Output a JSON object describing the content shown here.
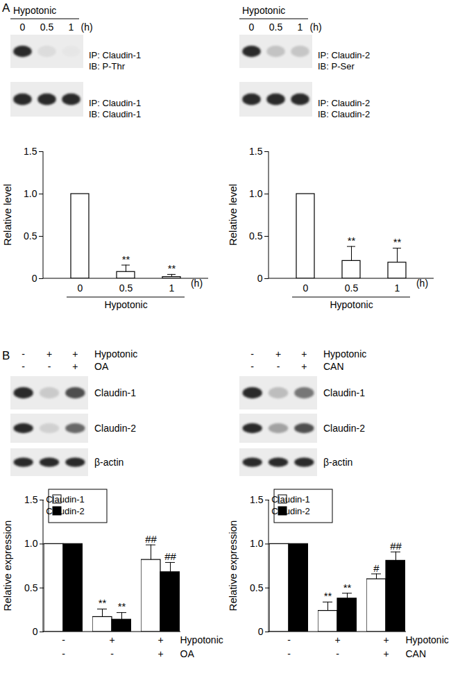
{
  "panel_labels": [
    "A",
    "B"
  ],
  "blots": [
    {
      "treatment": "Hypotonic",
      "lanes": [
        "0",
        "0.5",
        "1"
      ],
      "unit": "(h)",
      "rows": [
        [
          "IP: Claudin-1",
          "IB: P-Thr"
        ],
        [
          "IP: Claudin-1",
          "IB: Claudin-1"
        ]
      ]
    },
    {
      "treatment": "Hypotonic",
      "lanes": [
        "0",
        "0.5",
        "1"
      ],
      "unit": "(h)",
      "rows": [
        [
          "IP: Claudin-2",
          "IB: P-Ser"
        ],
        [
          "IP: Claudin-2",
          "IB: Claudin-2"
        ]
      ]
    },
    {
      "treatment_rows": [
        {
          "label": "Hypotonic",
          "values": [
            "-",
            "+",
            "+"
          ]
        },
        {
          "label": "OA",
          "values": [
            "-",
            "-",
            "+"
          ]
        }
      ],
      "rows": [
        [
          "Claudin-1"
        ],
        [
          "Claudin-2"
        ],
        [
          "β-actin"
        ]
      ]
    },
    {
      "treatment_rows": [
        {
          "label": "Hypotonic",
          "values": [
            "-",
            "+",
            "+"
          ]
        },
        {
          "label": "CAN",
          "values": [
            "-",
            "-",
            "+"
          ]
        }
      ],
      "rows": [
        [
          "Claudin-1"
        ],
        [
          "Claudin-2"
        ],
        [
          "β-actin"
        ]
      ]
    }
  ],
  "chart_data": [
    {
      "type": "bar",
      "ylabel": "Relative level",
      "categories": [
        "0",
        "0.5",
        "1"
      ],
      "x_unit": "(h)",
      "x_group_label": "Hypotonic",
      "color": "#ffffff",
      "values": [
        1.0,
        0.08,
        0.02
      ],
      "errors": [
        0,
        0.08,
        0.03
      ],
      "annotations": [
        null,
        "**",
        "**"
      ],
      "ylim": [
        0,
        1.5
      ],
      "yticks": [
        0,
        0.5,
        {
          "value": 1,
          "label": "1.0"
        },
        1.5
      ],
      "grid": false
    },
    {
      "type": "bar",
      "ylabel": "Relative level",
      "categories": [
        "0",
        "0.5",
        "1"
      ],
      "x_unit": "(h)",
      "x_group_label": "Hypotonic",
      "color": "#ffffff",
      "values": [
        1.0,
        0.21,
        0.19
      ],
      "errors": [
        0,
        0.17,
        0.17
      ],
      "annotations": [
        null,
        "**",
        "**"
      ],
      "ylim": [
        0,
        1.5
      ],
      "yticks": [
        0,
        0.5,
        {
          "value": 1,
          "label": "1.0"
        },
        1.5
      ],
      "grid": false
    },
    {
      "type": "bar",
      "ylabel": "Relative expression",
      "categories": [
        null,
        null,
        null
      ],
      "x_rows": [
        {
          "label": "Hypotonic",
          "values": [
            "-",
            "+",
            "+"
          ]
        },
        {
          "label": "OA",
          "values": [
            "-",
            "-",
            "+"
          ]
        }
      ],
      "legend": "top-left",
      "series": [
        {
          "name": "Claudin-1",
          "color": "#ffffff",
          "values": [
            1.0,
            0.17,
            0.82
          ],
          "errors": [
            0,
            0.09,
            0.17
          ],
          "annotations": [
            null,
            "**",
            "##"
          ]
        },
        {
          "name": "Claudin-2",
          "color": "#000000",
          "values": [
            1.0,
            0.14,
            0.68
          ],
          "errors": [
            0,
            0.08,
            0.11
          ],
          "annotations": [
            null,
            "**",
            "##"
          ]
        }
      ],
      "ylim": [
        0,
        1.5
      ],
      "yticks": [
        0,
        0.5,
        {
          "value": 1,
          "label": "1.0"
        },
        1.5
      ],
      "grid": false
    },
    {
      "type": "bar",
      "ylabel": "Relative expression",
      "categories": [
        null,
        null,
        null
      ],
      "x_rows": [
        {
          "label": "Hypotonic",
          "values": [
            "-",
            "+",
            "+"
          ]
        },
        {
          "label": "CAN",
          "values": [
            "-",
            "-",
            "+"
          ]
        }
      ],
      "legend": "top-left",
      "series": [
        {
          "name": "Claudin-1",
          "color": "#ffffff",
          "values": [
            1.0,
            0.24,
            0.6
          ],
          "errors": [
            0,
            0.1,
            0.06
          ],
          "annotations": [
            null,
            "**",
            "#"
          ]
        },
        {
          "name": "Claudin-2",
          "color": "#000000",
          "values": [
            1.0,
            0.38,
            0.81
          ],
          "errors": [
            0,
            0.06,
            0.1
          ],
          "annotations": [
            null,
            "**",
            "##"
          ]
        }
      ],
      "ylim": [
        0,
        1.5
      ],
      "yticks": [
        0,
        0.5,
        {
          "value": 1,
          "label": "1.0"
        },
        1.5
      ],
      "grid": false
    }
  ]
}
